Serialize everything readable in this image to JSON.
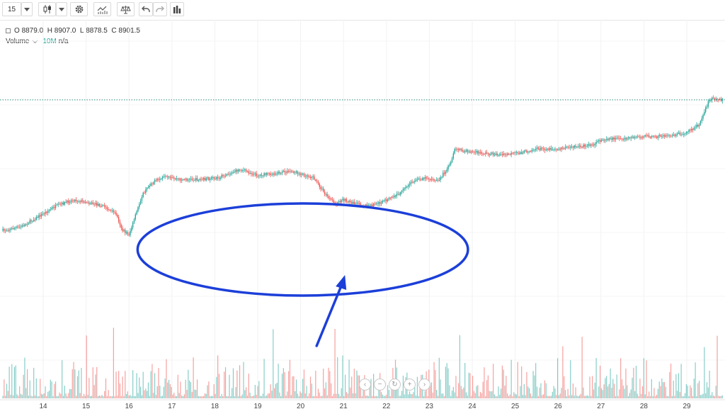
{
  "toolbar": {
    "interval_label": "15",
    "icons": [
      "chevron-down-icon",
      "candlestick-icon",
      "chevron-down-icon",
      "gear-icon",
      "indicators-icon",
      "compare-icon",
      "undo-icon",
      "redo-icon",
      "bars-icon"
    ]
  },
  "legend": {
    "o_label": "O",
    "o_value": "8879.0",
    "h_label": "H",
    "h_value": "8907.0",
    "l_label": "L",
    "l_value": "8878.5",
    "c_label": "C",
    "c_value": "8901.5",
    "volume_label": "Volume",
    "volume_ma": "10M",
    "volume_value": "n/a"
  },
  "colors": {
    "up": "#26a69a",
    "down": "#ef5350",
    "annotation": "#1c3fd9",
    "last_price_line": "#2a8a7a"
  },
  "chart_data": {
    "type": "candlestick",
    "x_ticks": [
      "14",
      "15",
      "16",
      "17",
      "18",
      "19",
      "20",
      "21",
      "22",
      "23",
      "24",
      "25",
      "26",
      "27",
      "28",
      "29"
    ],
    "grid": true,
    "ohlc_last": {
      "o": 8879.0,
      "h": 8907.0,
      "l": 8878.5,
      "c": 8901.5
    },
    "price_path_norm": [
      [
        13.1,
        0.35
      ],
      [
        13.5,
        0.37
      ],
      [
        13.9,
        0.42
      ],
      [
        14.3,
        0.47
      ],
      [
        14.7,
        0.5
      ],
      [
        15.0,
        0.49
      ],
      [
        15.4,
        0.47
      ],
      [
        15.7,
        0.43
      ],
      [
        15.85,
        0.35
      ],
      [
        16.0,
        0.33
      ],
      [
        16.1,
        0.39
      ],
      [
        16.3,
        0.52
      ],
      [
        16.5,
        0.58
      ],
      [
        16.8,
        0.61
      ],
      [
        17.2,
        0.6
      ],
      [
        17.7,
        0.6
      ],
      [
        18.1,
        0.61
      ],
      [
        18.6,
        0.65
      ],
      [
        19.0,
        0.62
      ],
      [
        19.4,
        0.63
      ],
      [
        19.8,
        0.64
      ],
      [
        20.3,
        0.61
      ],
      [
        20.6,
        0.52
      ],
      [
        20.8,
        0.48
      ],
      [
        21.0,
        0.5
      ],
      [
        21.3,
        0.48
      ],
      [
        21.6,
        0.47
      ],
      [
        21.9,
        0.49
      ],
      [
        22.3,
        0.53
      ],
      [
        22.6,
        0.59
      ],
      [
        22.9,
        0.61
      ],
      [
        23.2,
        0.59
      ],
      [
        23.5,
        0.68
      ],
      [
        23.6,
        0.75
      ],
      [
        23.8,
        0.74
      ],
      [
        24.2,
        0.73
      ],
      [
        24.7,
        0.72
      ],
      [
        25.1,
        0.73
      ],
      [
        25.5,
        0.75
      ],
      [
        26.0,
        0.75
      ],
      [
        26.4,
        0.76
      ],
      [
        26.8,
        0.77
      ],
      [
        27.1,
        0.8
      ],
      [
        27.5,
        0.8
      ],
      [
        27.9,
        0.81
      ],
      [
        28.3,
        0.81
      ],
      [
        28.7,
        0.82
      ],
      [
        29.0,
        0.83
      ],
      [
        29.3,
        0.87
      ],
      [
        29.5,
        0.98
      ],
      [
        29.6,
        1.0
      ],
      [
        29.8,
        0.99
      ]
    ],
    "annotation": {
      "ellipse_x_range": [
        16.2,
        23.9
      ],
      "arrow_target_day": 21.0
    }
  }
}
